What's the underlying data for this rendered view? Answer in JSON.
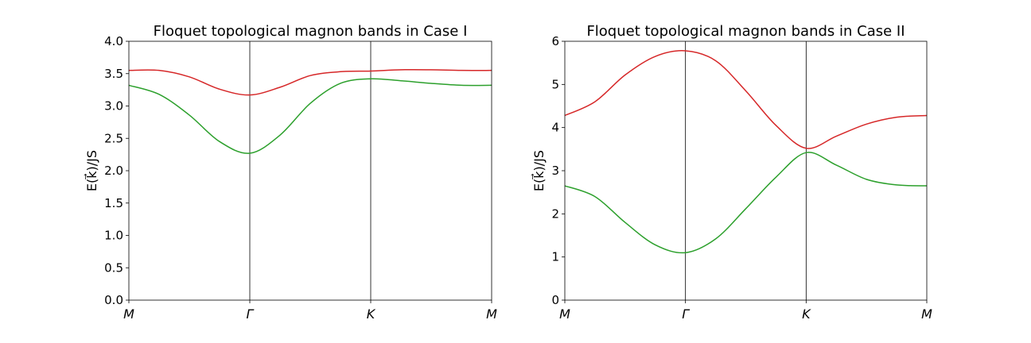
{
  "chart_data": [
    {
      "type": "line",
      "title": "Floquet topological magnon bands in Case I",
      "xlabel": "",
      "ylabel": "E(k⃗)/JS",
      "ylim": [
        0,
        4
      ],
      "yticks": [
        "0.0",
        "0.5",
        "1.0",
        "1.5",
        "2.0",
        "2.5",
        "3.0",
        "3.5",
        "4.0"
      ],
      "xtick_labels": [
        "M",
        "Γ",
        "K",
        "M"
      ],
      "xtick_positions": [
        0,
        1,
        2,
        3
      ],
      "vlines": [
        1,
        2
      ],
      "grid": false,
      "series": [
        {
          "color": "#d62728",
          "x": [
            0,
            0.25,
            0.5,
            0.75,
            1.0,
            1.25,
            1.5,
            1.75,
            2.0,
            2.25,
            2.5,
            2.75,
            3.0
          ],
          "y": [
            3.55,
            3.55,
            3.45,
            3.26,
            3.17,
            3.29,
            3.47,
            3.53,
            3.54,
            3.56,
            3.56,
            3.55,
            3.55
          ]
        },
        {
          "color": "#2ca02c",
          "x": [
            0,
            0.25,
            0.5,
            0.75,
            1.0,
            1.25,
            1.5,
            1.75,
            2.0,
            2.25,
            2.5,
            2.75,
            3.0
          ],
          "y": [
            3.32,
            3.18,
            2.86,
            2.45,
            2.27,
            2.55,
            3.04,
            3.35,
            3.42,
            3.39,
            3.35,
            3.32,
            3.32
          ]
        }
      ]
    },
    {
      "type": "line",
      "title": "Floquet topological magnon bands in Case II",
      "xlabel": "",
      "ylabel": "E(k⃗)/JS",
      "ylim": [
        0,
        6
      ],
      "yticks": [
        "0",
        "1",
        "2",
        "3",
        "4",
        "5",
        "6"
      ],
      "xtick_labels": [
        "M",
        "Γ",
        "K",
        "M"
      ],
      "xtick_positions": [
        0,
        1,
        2,
        3
      ],
      "vlines": [
        1,
        2
      ],
      "grid": false,
      "series": [
        {
          "color": "#d62728",
          "x": [
            0,
            0.25,
            0.5,
            0.75,
            1.0,
            1.25,
            1.5,
            1.75,
            2.0,
            2.25,
            2.5,
            2.75,
            3.0
          ],
          "y": [
            4.28,
            4.6,
            5.22,
            5.65,
            5.78,
            5.55,
            4.85,
            4.05,
            3.52,
            3.8,
            4.08,
            4.24,
            4.28
          ]
        },
        {
          "color": "#2ca02c",
          "x": [
            0,
            0.25,
            0.5,
            0.75,
            1.0,
            1.25,
            1.5,
            1.75,
            2.0,
            2.25,
            2.5,
            2.75,
            3.0
          ],
          "y": [
            2.65,
            2.4,
            1.8,
            1.28,
            1.1,
            1.42,
            2.12,
            2.85,
            3.42,
            3.13,
            2.8,
            2.67,
            2.65
          ]
        }
      ]
    }
  ]
}
